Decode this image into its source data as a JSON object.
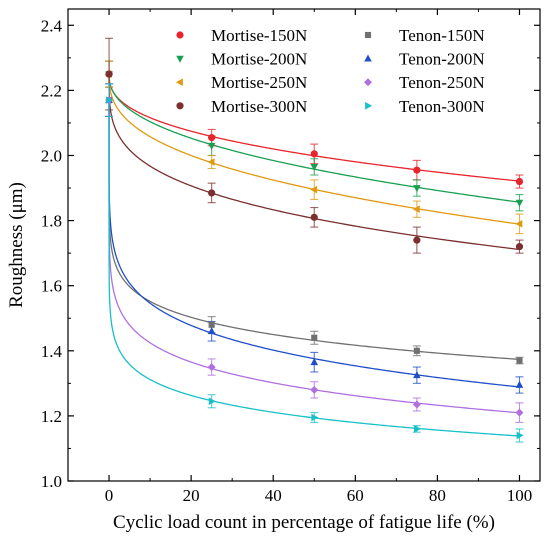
{
  "chart_data": {
    "type": "scatter",
    "xlabel": "Cyclic load count in percentage of fatigue life (%)",
    "ylabel": "Roughness (μm)",
    "xlim": [
      -10,
      105
    ],
    "ylim": [
      1.0,
      2.45
    ],
    "xticks": [
      0,
      20,
      40,
      60,
      80,
      100
    ],
    "yticks": [
      1.0,
      1.2,
      1.4,
      1.6,
      1.8,
      2.0,
      2.2,
      2.4
    ],
    "xtick_labels": [
      "0",
      "20",
      "40",
      "60",
      "80",
      "100"
    ],
    "ytick_labels": [
      "1.0",
      "1.2",
      "1.4",
      "1.6",
      "1.8",
      "2.0",
      "2.2",
      "2.4"
    ],
    "grid": false,
    "legend_position": "top-right",
    "fit_curves": true,
    "x": [
      0,
      25,
      50,
      75,
      100
    ],
    "series": [
      {
        "name": "Mortise-150N",
        "color": "#e8242c",
        "marker": "circle",
        "values": [
          2.25,
          2.055,
          2.005,
          1.955,
          1.92
        ],
        "errors": [
          0.04,
          0.025,
          0.03,
          0.03,
          0.02
        ]
      },
      {
        "name": "Mortise-200N",
        "color": "#18a050",
        "marker": "triangle-down",
        "values": [
          2.25,
          2.03,
          1.965,
          1.9,
          1.855
        ],
        "errors": [
          0.04,
          0.03,
          0.025,
          0.025,
          0.025
        ]
      },
      {
        "name": "Mortise-250N",
        "color": "#e09a10",
        "marker": "triangle-left",
        "values": [
          2.25,
          1.98,
          1.895,
          1.835,
          1.79
        ],
        "errors": [
          0.04,
          0.02,
          0.03,
          0.025,
          0.03
        ]
      },
      {
        "name": "Mortise-300N",
        "color": "#7b2f2f",
        "marker": "circle",
        "values": [
          2.25,
          1.885,
          1.81,
          1.74,
          1.72
        ],
        "errors": [
          0.11,
          0.03,
          0.03,
          0.04,
          0.02
        ]
      },
      {
        "name": "Tenon-150N",
        "color": "#707070",
        "marker": "square",
        "values": [
          2.17,
          1.48,
          1.44,
          1.4,
          1.37
        ],
        "errors": [
          0.05,
          0.025,
          0.02,
          0.015,
          0.01
        ]
      },
      {
        "name": "Tenon-200N",
        "color": "#1f4fc8",
        "marker": "triangle-up",
        "values": [
          2.17,
          1.46,
          1.365,
          1.325,
          1.295
        ],
        "errors": [
          0.05,
          0.03,
          0.03,
          0.025,
          0.025
        ]
      },
      {
        "name": "Tenon-250N",
        "color": "#b070e0",
        "marker": "diamond",
        "values": [
          2.17,
          1.35,
          1.28,
          1.235,
          1.21
        ],
        "errors": [
          0.05,
          0.025,
          0.025,
          0.02,
          0.03
        ]
      },
      {
        "name": "Tenon-300N",
        "color": "#18c0c8",
        "marker": "triangle-right",
        "values": [
          2.17,
          1.245,
          1.195,
          1.16,
          1.14
        ],
        "errors": [
          0.05,
          0.02,
          0.015,
          0.01,
          0.02
        ]
      }
    ]
  }
}
